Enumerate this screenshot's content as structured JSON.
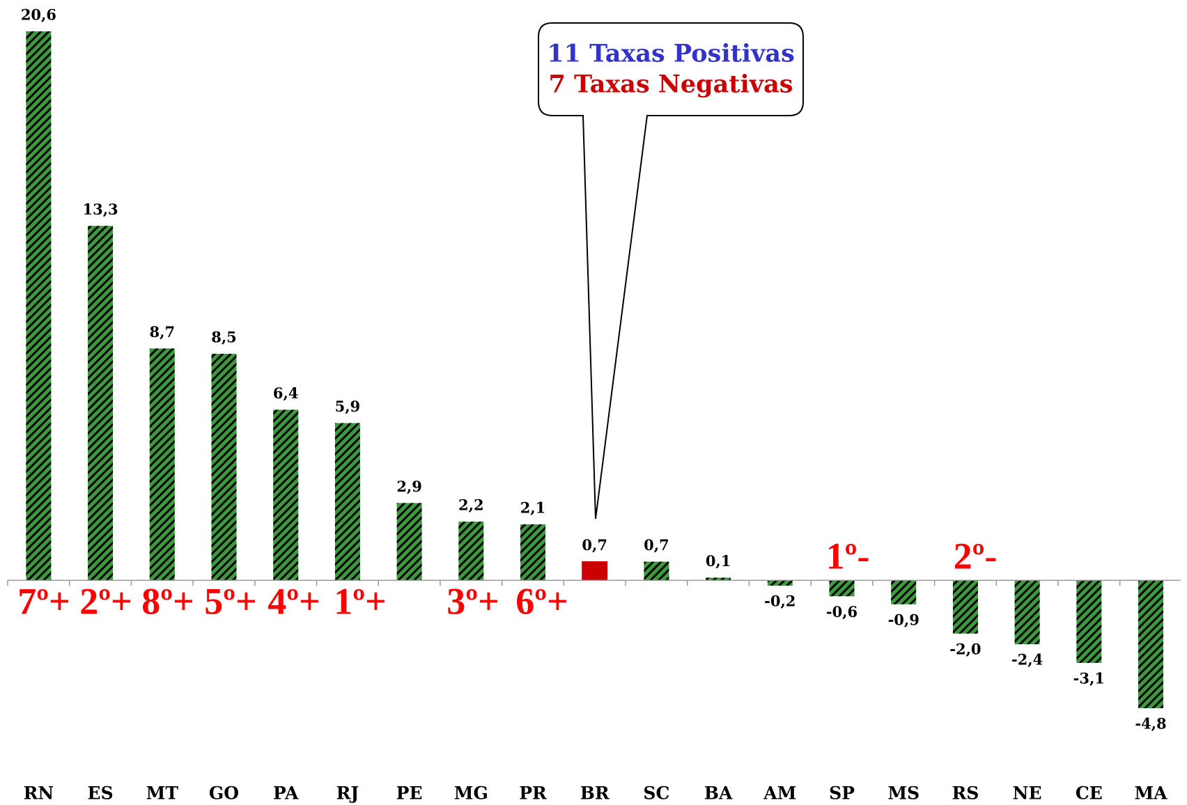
{
  "chart_data": {
    "type": "bar",
    "categories": [
      "RN",
      "ES",
      "MT",
      "GO",
      "PA",
      "RJ",
      "PE",
      "MG",
      "PR",
      "BR",
      "SC",
      "BA",
      "AM",
      "SP",
      "MS",
      "RS",
      "NE",
      "CE",
      "MA"
    ],
    "values": [
      20.6,
      13.3,
      8.7,
      8.5,
      6.4,
      5.9,
      2.9,
      2.2,
      2.1,
      0.7,
      0.7,
      0.1,
      -0.2,
      -0.6,
      -0.9,
      -2.0,
      -2.4,
      -3.1,
      -4.8
    ],
    "value_labels": [
      "20,6",
      "13,3",
      "8,7",
      "8,5",
      "6,4",
      "5,9",
      "2,9",
      "2,2",
      "2,1",
      "0,7",
      "0,7",
      "0,1",
      "-0,2",
      "-0,6",
      "-0,9",
      "-2,0",
      "-2,4",
      "-3,1",
      "-4,8"
    ],
    "colors": [
      "#3c9a3c",
      "#3c9a3c",
      "#3c9a3c",
      "#3c9a3c",
      "#3c9a3c",
      "#3c9a3c",
      "#3c9a3c",
      "#3c9a3c",
      "#3c9a3c",
      "#cc0000",
      "#3c9a3c",
      "#3c9a3c",
      "#3c9a3c",
      "#3c9a3c",
      "#3c9a3c",
      "#3c9a3c",
      "#3c9a3c",
      "#3c9a3c",
      "#3c9a3c"
    ],
    "ylim": [
      -4.8,
      20.6
    ],
    "annotations": [
      "7º+",
      "2º+",
      "8º+",
      "5º+",
      "4º+",
      "1º+",
      "3º+",
      "6º+",
      "1º-",
      "2º-"
    ],
    "callout": [
      "11 Taxas Positivas",
      "7 Taxas Negativas"
    ]
  }
}
